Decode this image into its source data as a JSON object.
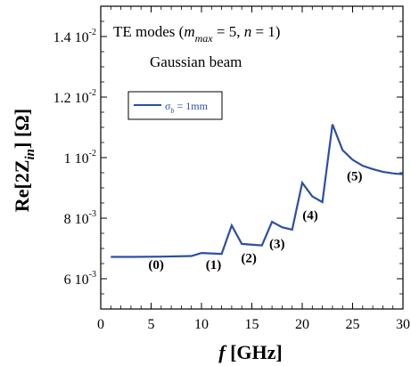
{
  "chart_data": {
    "type": "line",
    "title_prefix": "TE modes (",
    "title_m": "m",
    "title_m_sub": "max",
    "title_suffix": " = 5, ",
    "title_n": "n",
    "title_end": " = 1)",
    "subtitle": "Gaussian beam",
    "xlabel_var": "f",
    "xlabel_unit": " [GHz]",
    "ylabel_main": "Re[2Z",
    "ylabel_sub": "in",
    "ylabel_unit": "] [Ω]",
    "xlim": [
      0,
      30
    ],
    "ylim": [
      0.005,
      0.015
    ],
    "x_ticks": [
      {
        "value": 0,
        "label": "0"
      },
      {
        "value": 5,
        "label": "5"
      },
      {
        "value": 10,
        "label": "10"
      },
      {
        "value": 15,
        "label": "15"
      },
      {
        "value": 20,
        "label": "20"
      },
      {
        "value": 25,
        "label": "25"
      },
      {
        "value": 30,
        "label": "30"
      }
    ],
    "y_ticks": [
      {
        "value": 0.006,
        "mantissa": "6",
        "exp": "-3"
      },
      {
        "value": 0.008,
        "mantissa": "8",
        "exp": "-3"
      },
      {
        "value": 0.01,
        "mantissa": "1",
        "exp": "-2"
      },
      {
        "value": 0.012,
        "mantissa": "1.2",
        "exp": "-2"
      },
      {
        "value": 0.014,
        "mantissa": "1.4",
        "exp": "-2"
      }
    ],
    "legend": {
      "symbol": "σ",
      "sub": "b",
      "text": " = 1mm",
      "placement": "top-left"
    },
    "series": [
      {
        "color": "#2b4fa2",
        "x": [
          1,
          3,
          6,
          9,
          10,
          12,
          13,
          14,
          16,
          17,
          18,
          19,
          20,
          21,
          22,
          23,
          24,
          25,
          26,
          27,
          28,
          29,
          30
        ],
        "y": [
          0.00672,
          0.00672,
          0.00673,
          0.00675,
          0.00685,
          0.00682,
          0.00776,
          0.00715,
          0.0071,
          0.00788,
          0.0077,
          0.00762,
          0.00917,
          0.00872,
          0.00853,
          0.0111,
          0.01025,
          0.00993,
          0.00973,
          0.00962,
          0.00953,
          0.00948,
          0.00945
        ]
      }
    ],
    "annotations": [
      {
        "text": "(0)",
        "x": 5.5,
        "y": 0.00632
      },
      {
        "text": "(1)",
        "x": 11.2,
        "y": 0.00632
      },
      {
        "text": "(2)",
        "x": 14.7,
        "y": 0.00655
      },
      {
        "text": "(3)",
        "x": 17.5,
        "y": 0.00702
      },
      {
        "text": "(4)",
        "x": 20.8,
        "y": 0.00795
      },
      {
        "text": "(5)",
        "x": 25.2,
        "y": 0.00925
      }
    ]
  }
}
